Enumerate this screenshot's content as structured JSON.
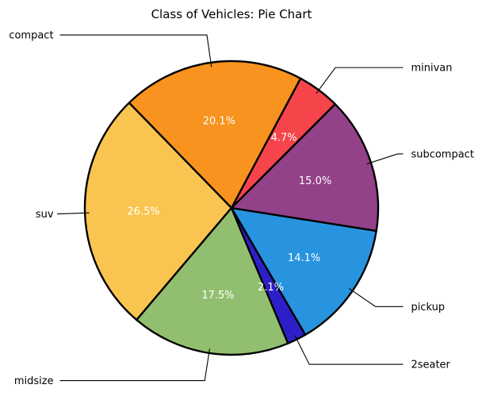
{
  "chart_data": {
    "type": "pie",
    "title": "Class of Vehicles: Pie Chart",
    "start_angle_deg": 45,
    "direction": "counterclockwise-from-top-right",
    "slices": [
      {
        "label": "minivan",
        "value": 4.7,
        "pct_label": "4.7%",
        "color": "#f5444a"
      },
      {
        "label": "compact",
        "value": 20.1,
        "pct_label": "20.1%",
        "color": "#f7931e"
      },
      {
        "label": "suv",
        "value": 26.5,
        "pct_label": "26.5%",
        "color": "#f9c550"
      },
      {
        "label": "midsize",
        "value": 17.5,
        "pct_label": "17.5%",
        "color": "#92bf6f"
      },
      {
        "label": "2seater",
        "value": 2.1,
        "pct_label": "2.1%",
        "color": "#2d1fc7"
      },
      {
        "label": "pickup",
        "value": 14.1,
        "pct_label": "14.1%",
        "color": "#2894e0"
      },
      {
        "label": "subcompact",
        "value": 15.0,
        "pct_label": "15.0%",
        "color": "#934189"
      }
    ]
  }
}
